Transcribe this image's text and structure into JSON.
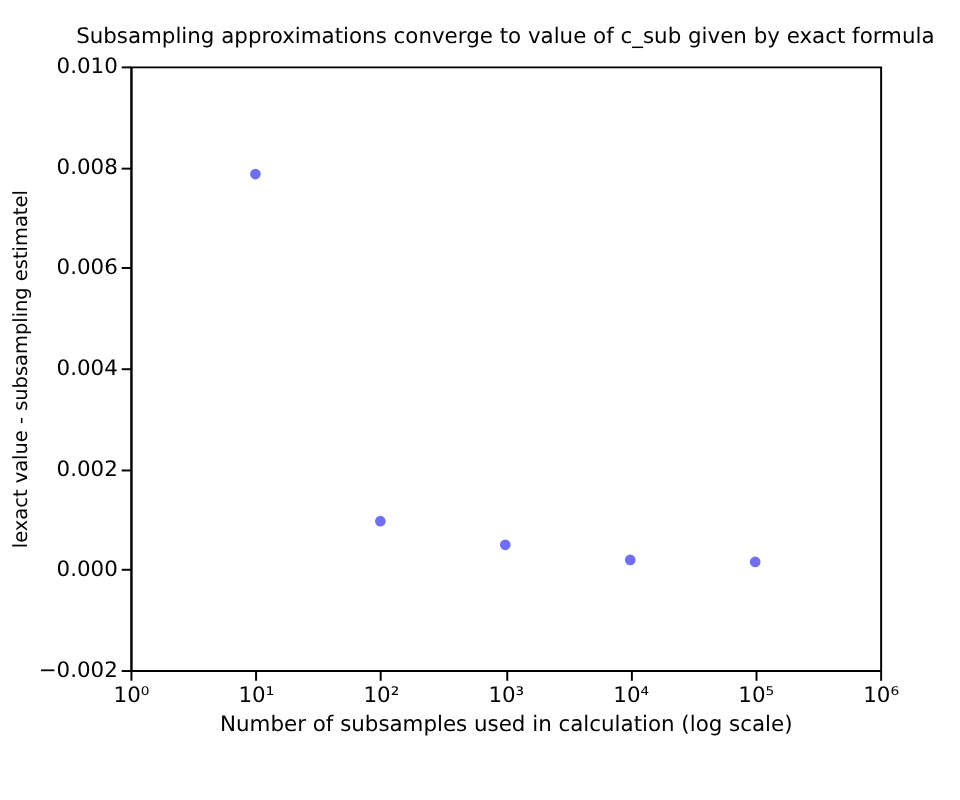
{
  "chart_data": {
    "type": "scatter",
    "title": "Subsampling approximations converge to value of c_sub given by exact formula",
    "xlabel": "Number of subsamples used in calculation (log scale)",
    "ylabel": "lexact value - subsampling estimatel",
    "x": [
      10,
      100,
      1000,
      10000,
      100000
    ],
    "series": [
      {
        "color": "#6f6ff0",
        "values": [
          0.00786,
          0.00096,
          0.00049,
          0.00019,
          0.00015
        ]
      }
    ],
    "log": "x",
    "xlim": [
      1,
      1000000
    ],
    "xticks": [
      {
        "value": 1,
        "label": "10⁰"
      },
      {
        "value": 10,
        "label": "10¹"
      },
      {
        "value": 100,
        "label": "10²"
      },
      {
        "value": 1000,
        "label": "10³"
      },
      {
        "value": 10000,
        "label": "10⁴"
      },
      {
        "value": 100000,
        "label": "10⁵"
      },
      {
        "value": 1000000,
        "label": "10⁶"
      }
    ],
    "ylim": [
      -0.002,
      0.01
    ],
    "yticks": [
      {
        "value": -0.002,
        "label": "−0.002"
      },
      {
        "value": 0,
        "label": "0.000"
      },
      {
        "value": 0.002,
        "label": "0.002"
      },
      {
        "value": 0.004,
        "label": "0.004"
      },
      {
        "value": 0.006,
        "label": "0.006"
      },
      {
        "value": 0.008,
        "label": "0.008"
      },
      {
        "value": 0.01,
        "label": "0.010"
      }
    ],
    "grid": false,
    "legend": false,
    "marker": "circle"
  }
}
